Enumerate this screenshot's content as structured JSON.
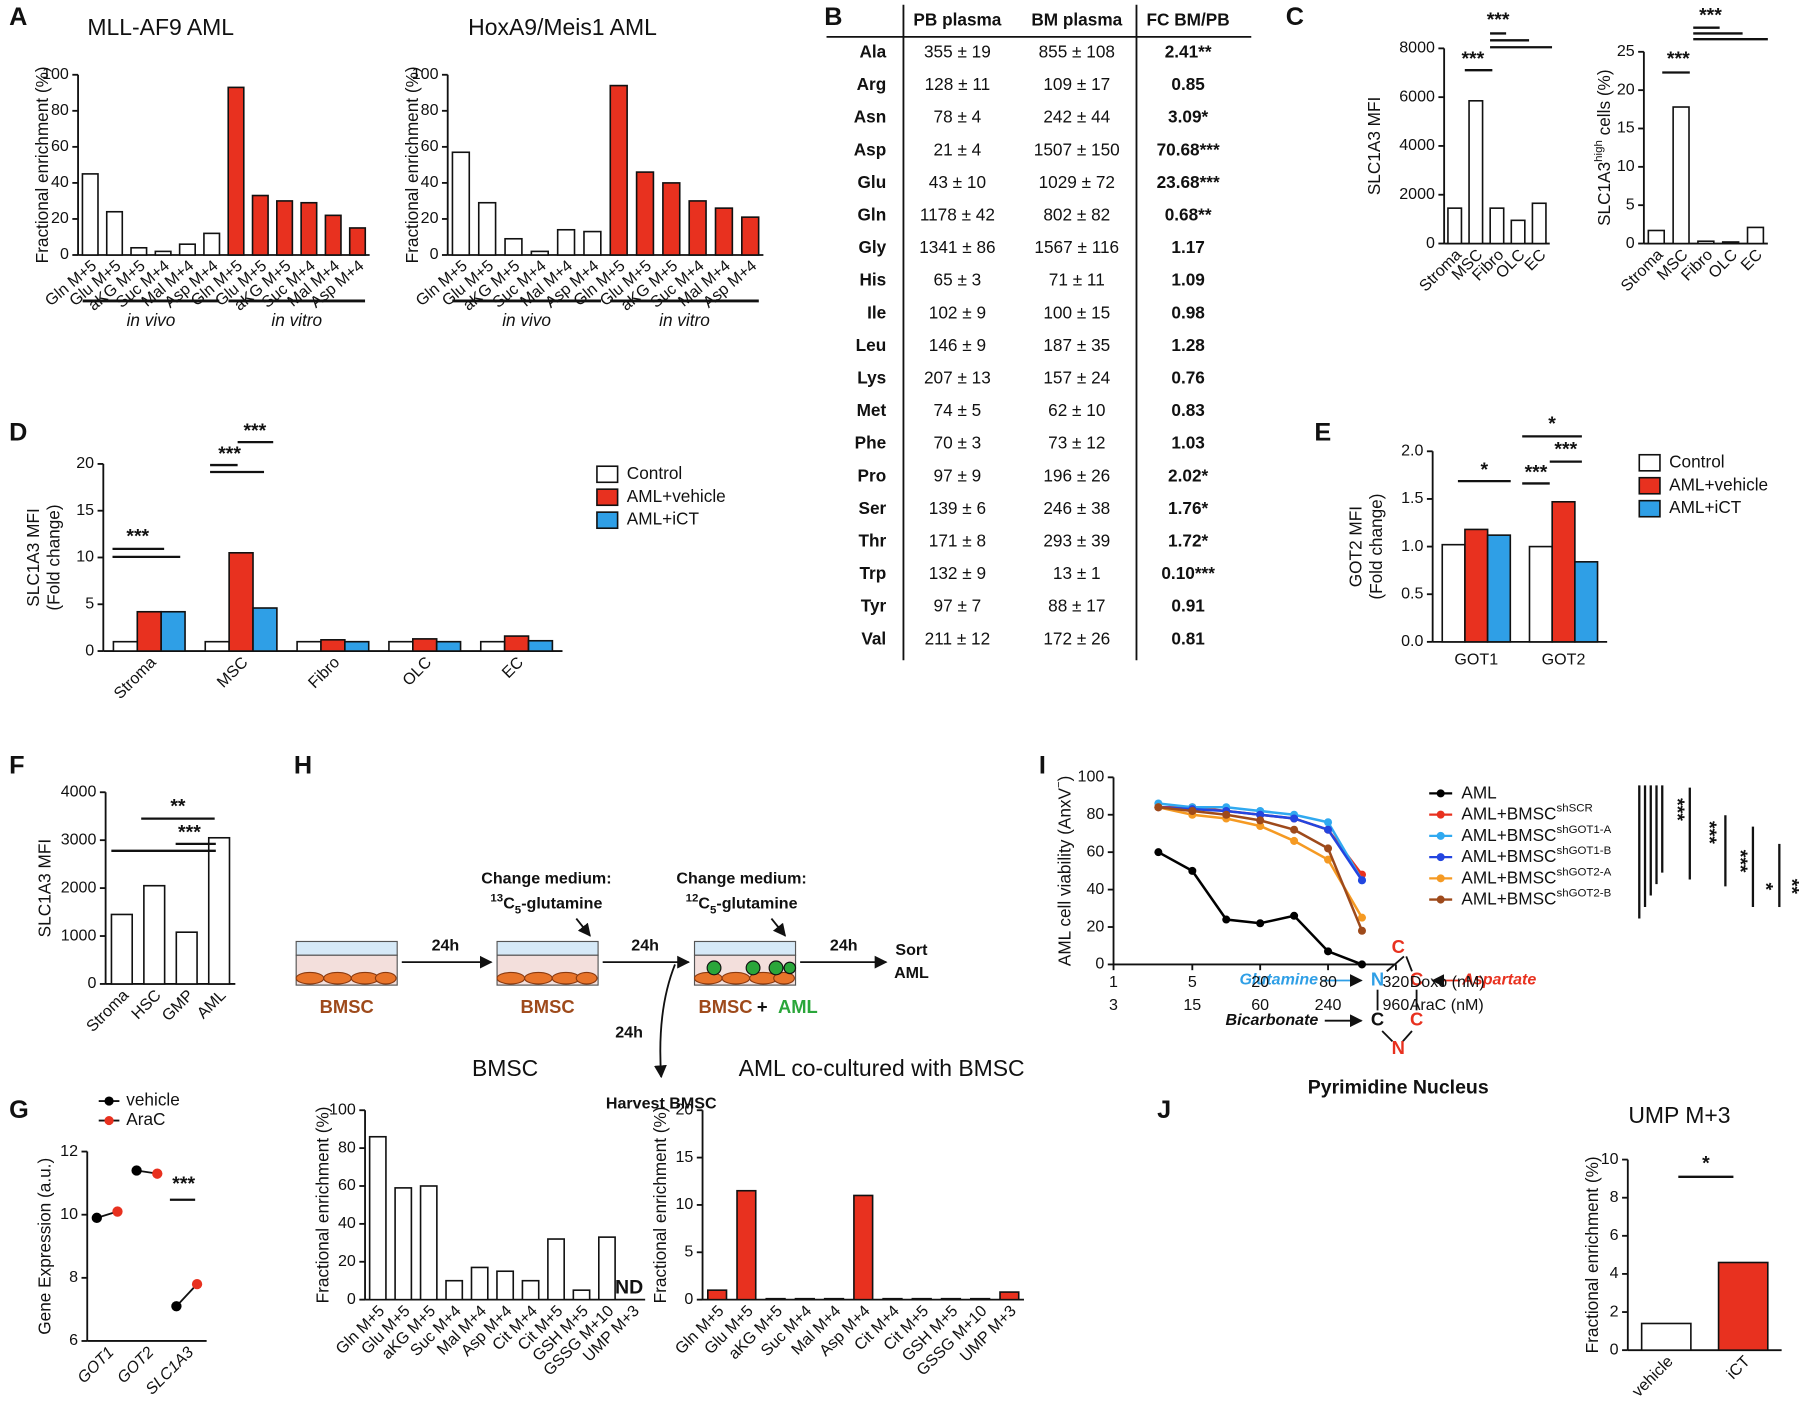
{
  "panels": [
    "A",
    "B",
    "C",
    "D",
    "E",
    "F",
    "G",
    "H",
    "I",
    "J"
  ],
  "table": {
    "header": [
      "PB plasma",
      "BM plasma",
      "FC BM/PB"
    ],
    "rows": [
      [
        "Ala",
        "355 ± 19",
        "855 ± 108",
        "2.41**"
      ],
      [
        "Arg",
        "128 ± 11",
        "109 ± 17",
        "0.85"
      ],
      [
        "Asn",
        "78 ± 4",
        "242 ± 44",
        "3.09*"
      ],
      [
        "Asp",
        "21 ± 4",
        "1507 ± 150",
        "70.68***"
      ],
      [
        "Glu",
        "43 ± 10",
        "1029 ± 72",
        "23.68***"
      ],
      [
        "Gln",
        "1178 ± 42",
        "802 ± 82",
        "0.68**"
      ],
      [
        "Gly",
        "1341 ± 86",
        "1567 ± 116",
        "1.17"
      ],
      [
        "His",
        "65 ± 3",
        "71 ± 11",
        "1.09"
      ],
      [
        "Ile",
        "102 ± 9",
        "100 ± 15",
        "0.98"
      ],
      [
        "Leu",
        "146 ± 9",
        "187 ± 35",
        "1.28"
      ],
      [
        "Lys",
        "207 ± 13",
        "157 ± 24",
        "0.76"
      ],
      [
        "Met",
        "74 ± 5",
        "62 ± 10",
        "0.83"
      ],
      [
        "Phe",
        "70 ± 3",
        "73 ± 12",
        "1.03"
      ],
      [
        "Pro",
        "97 ± 9",
        "196 ± 26",
        "2.02*"
      ],
      [
        "Ser",
        "139 ± 6",
        "246 ± 38",
        "1.76*"
      ],
      [
        "Thr",
        "171 ± 8",
        "293 ± 39",
        "1.72*"
      ],
      [
        "Trp",
        "132 ± 9",
        "13 ± 1",
        "0.10***"
      ],
      [
        "Tyr",
        "97 ± 7",
        "88 ± 17",
        "0.91"
      ],
      [
        "Val",
        "211 ± 12",
        "172 ± 26",
        "0.81"
      ]
    ]
  },
  "diagram_h": {
    "steps": [
      {
        "heading": "Change medium:",
        "isotope_mass": "13",
        "isotope_element": "C",
        "isotope_count": "5",
        "label": "-glutamine"
      },
      {
        "heading": "Change medium:",
        "isotope_mass": "12",
        "isotope_element": "C",
        "isotope_count": "5",
        "label": "-glutamine"
      }
    ],
    "durations": [
      "24h",
      "24h",
      "24h",
      "24h"
    ],
    "cell_labels": [
      "BMSC",
      "BMSC",
      "BMSC"
    ],
    "plus": "+",
    "aml": "AML",
    "harvest": "Harvest BMSC",
    "sort": [
      "Sort",
      "AML"
    ]
  },
  "diagram_j": {
    "atoms": [
      "C",
      "N",
      "C",
      "C",
      "C",
      "N"
    ],
    "glutamine": "Glutamine",
    "aspartate": "Aspartate",
    "bicarbonate": "Bicarbonate",
    "caption": "Pyrimidine Nucleus"
  },
  "chart_data": [
    {
      "type": "bar",
      "title": "MLL-AF9 AML",
      "ylabel": "Fractional enrichment (%)",
      "categories": [
        "Gln M+5",
        "Glu M+5",
        "aKG M+5",
        "Suc M+4",
        "Mal M+4",
        "Asp M+4",
        "Gln M+5",
        "Glu M+5",
        "aKG M+5",
        "Suc M+4",
        "Mal M+4",
        "Asp M+4"
      ],
      "values": [
        45,
        24,
        4,
        2,
        6,
        12,
        93,
        33,
        30,
        29,
        22,
        15
      ],
      "groups": [
        {
          "label": "in vivo",
          "color": "#ffffff"
        },
        {
          "label": "in vitro",
          "color": "#e8311f"
        }
      ],
      "ylim": [
        0,
        100
      ],
      "yticks": [
        0,
        20,
        40,
        60,
        80,
        100
      ]
    },
    {
      "type": "bar",
      "title": "HoxA9/Meis1 AML",
      "ylabel": "Fractional enrichment (%)",
      "categories": [
        "Gln M+5",
        "Glu M+5",
        "aKG M+5",
        "Suc M+4",
        "Mal M+4",
        "Asp M+4",
        "Gln M+5",
        "Glu M+5",
        "aKG M+5",
        "Suc M+4",
        "Mal M+4",
        "Asp M+4"
      ],
      "values": [
        57,
        29,
        9,
        2,
        14,
        13,
        94,
        46,
        40,
        30,
        26,
        21
      ],
      "groups": [
        {
          "label": "in vivo",
          "color": "#ffffff"
        },
        {
          "label": "in vitro",
          "color": "#e8311f"
        }
      ],
      "ylim": [
        0,
        100
      ],
      "yticks": [
        0,
        20,
        40,
        60,
        80,
        100
      ]
    },
    {
      "type": "bar",
      "ylabel": "SLC1A3 MFI",
      "categories": [
        "Stroma",
        "MSC",
        "Fibro",
        "OLC",
        "EC"
      ],
      "values": [
        1450,
        5850,
        1450,
        950,
        1650
      ],
      "color": "#ffffff",
      "ylim": [
        0,
        8000
      ],
      "yticks": [
        0,
        2000,
        4000,
        6000,
        8000
      ],
      "annotations": [
        "***",
        "***"
      ]
    },
    {
      "type": "bar",
      "ylabel": {
        "text": "SLC1A3",
        "sup": "high",
        "rest": " cells (%)"
      },
      "categories": [
        "Stroma",
        "MSC",
        "Fibro",
        "OLC",
        "EC"
      ],
      "values": [
        1.7,
        17.8,
        0.3,
        0.2,
        2.1
      ],
      "color": "#ffffff",
      "ylim": [
        0,
        25
      ],
      "yticks": [
        0,
        5,
        10,
        15,
        20,
        25
      ],
      "annotations": [
        "***",
        "***"
      ]
    },
    {
      "type": "bar",
      "ylabel": [
        "SLC1A3 MFI",
        "(Fold change)"
      ],
      "categories": [
        "Stroma",
        "MSC",
        "Fibro",
        "OLC",
        "EC"
      ],
      "series": [
        {
          "name": "Control",
          "color": "#ffffff",
          "values": [
            1,
            1,
            1,
            1,
            1
          ]
        },
        {
          "name": "AML+vehicle",
          "color": "#e8311f",
          "values": [
            4.2,
            10.5,
            1.2,
            1.3,
            1.6
          ]
        },
        {
          "name": "AML+iCT",
          "color": "#2f9fe6",
          "values": [
            4.2,
            4.6,
            1.0,
            1.0,
            1.1
          ]
        }
      ],
      "ylim": [
        0,
        20
      ],
      "yticks": [
        0,
        5,
        10,
        15,
        20
      ],
      "annotations": [
        "***",
        "***",
        "***"
      ]
    },
    {
      "type": "bar",
      "ylabel": [
        "GOT2 MFI",
        "(Fold change)"
      ],
      "categories": [
        "GOT1",
        "GOT2"
      ],
      "series": [
        {
          "name": "Control",
          "color": "#ffffff",
          "values": [
            1.02,
            1.0
          ]
        },
        {
          "name": "AML+vehicle",
          "color": "#e8311f",
          "values": [
            1.18,
            1.47
          ]
        },
        {
          "name": "AML+iCT",
          "color": "#2f9fe6",
          "values": [
            1.12,
            0.84
          ]
        }
      ],
      "ylim": [
        0,
        2
      ],
      "yticks": [
        {
          "value": 0,
          "label": "0.0"
        },
        0.5,
        {
          "value": 1,
          "label": "1.0"
        },
        1.5,
        {
          "value": 2,
          "label": "2.0"
        }
      ],
      "annotations": [
        "*",
        "***",
        "***",
        "*"
      ]
    },
    {
      "type": "bar",
      "ylabel": "SLC1A3 MFI",
      "categories": [
        "Stroma",
        "HSC",
        "GMP",
        "AML"
      ],
      "values": [
        1450,
        2050,
        1080,
        3050
      ],
      "color": "#ffffff",
      "ylim": [
        0,
        4000
      ],
      "yticks": [
        0,
        1000,
        2000,
        3000,
        4000
      ],
      "annotations": [
        "**",
        "***"
      ]
    },
    {
      "type": "dot",
      "ylabel": "Gene Expression (a.u.)",
      "categories": [
        "GOT1",
        "GOT2",
        "SLC1A3"
      ],
      "series": [
        {
          "name": "vehicle",
          "color": "#000000",
          "values": [
            9.9,
            11.4,
            7.1
          ]
        },
        {
          "name": "AraC",
          "color": "#e8311f",
          "values": [
            10.1,
            11.3,
            7.8
          ]
        }
      ],
      "ylim": [
        6,
        12
      ],
      "yticks": [
        6,
        8,
        10,
        12
      ],
      "annotations": [
        "***"
      ]
    },
    {
      "type": "line",
      "ylabel": {
        "text": "AML cell viability (AnxV",
        "sup": "−",
        "rest": ")"
      },
      "x": [
        2.5,
        5,
        10,
        20,
        40,
        80,
        160
      ],
      "xscale": "log",
      "xlim": [
        1,
        320
      ],
      "xticks": [
        1,
        5,
        20,
        80,
        320
      ],
      "xlabel": "Doxo (nM)",
      "x2lim": [
        3,
        960
      ],
      "x2ticks": [
        3,
        15,
        60,
        240,
        960
      ],
      "x2label": "AraC (nM)",
      "ylim": [
        0,
        100
      ],
      "yticks": [
        0,
        20,
        40,
        60,
        80,
        100
      ],
      "series": [
        {
          "name": "AML",
          "color": "#000000",
          "values": [
            60,
            50,
            24,
            22,
            26,
            7,
            0
          ]
        },
        {
          "name": "AML+BMSC",
          "name_sup": "shSCR",
          "color": "#e8311f",
          "values": [
            84,
            84,
            82,
            80,
            78,
            72,
            48
          ]
        },
        {
          "name": "AML+BMSC",
          "name_sup": "shGOT1-A",
          "color": "#30a9f0",
          "values": [
            86,
            84,
            84,
            82,
            80,
            76,
            45
          ]
        },
        {
          "name": "AML+BMSC",
          "name_sup": "shGOT1-B",
          "color": "#2345e0",
          "values": [
            84,
            83,
            82,
            80,
            78,
            72,
            45
          ]
        },
        {
          "name": "AML+BMSC",
          "name_sup": "shGOT2-A",
          "color": "#f59a23",
          "values": [
            84,
            80,
            78,
            74,
            66,
            56,
            25
          ]
        },
        {
          "name": "AML+BMSC",
          "name_sup": "shGOT2-B",
          "color": "#9e4a1b",
          "values": [
            84,
            82,
            80,
            77,
            72,
            62,
            18
          ]
        }
      ],
      "annotations": [
        "***",
        "***",
        "***",
        "*",
        "**"
      ]
    },
    {
      "type": "bar",
      "title": "BMSC",
      "ylabel": "Fractional enrichment (%)",
      "categories": [
        "Gln M+5",
        "Glu M+5",
        "aKG M+5",
        "Suc M+4",
        "Mal M+4",
        "Asp M+4",
        "Cit M+4",
        "Cit M+5",
        "GSH M+5",
        "GSSG M+10",
        "UMP M+3"
      ],
      "values": [
        86,
        59,
        60,
        10,
        17,
        15,
        10,
        32,
        5,
        33,
        null
      ],
      "color": "#ffffff",
      "ylim": [
        0,
        100
      ],
      "yticks": [
        0,
        20,
        40,
        60,
        80,
        100
      ],
      "annotations": [
        "ND"
      ]
    },
    {
      "type": "bar",
      "title": "AML co-cultured with BMSC",
      "ylabel": "Fractional enrichment (%)",
      "categories": [
        "Gln M+5",
        "Glu M+5",
        "aKG M+5",
        "Suc M+4",
        "Mal M+4",
        "Asp M+4",
        "Cit M+4",
        "Cit M+5",
        "GSH M+5",
        "GSSG M+10",
        "UMP M+3"
      ],
      "values": [
        1.0,
        11.5,
        0.1,
        0.1,
        0.1,
        11.0,
        0.1,
        0.1,
        0.1,
        0.1,
        0.8
      ],
      "color": "#e8311f",
      "ylim": [
        0,
        20
      ],
      "yticks": [
        0,
        5,
        10,
        15,
        20
      ]
    },
    {
      "type": "bar",
      "title": "UMP M+3",
      "ylabel": "Fractional enrichment (%)",
      "categories": [
        "vehicle",
        "iCT"
      ],
      "values": [
        1.4,
        4.6
      ],
      "colors": [
        "#ffffff",
        "#e8311f"
      ],
      "ylim": [
        0,
        10
      ],
      "yticks": [
        0,
        2,
        4,
        6,
        8,
        10
      ],
      "annotations": [
        "*"
      ]
    }
  ]
}
